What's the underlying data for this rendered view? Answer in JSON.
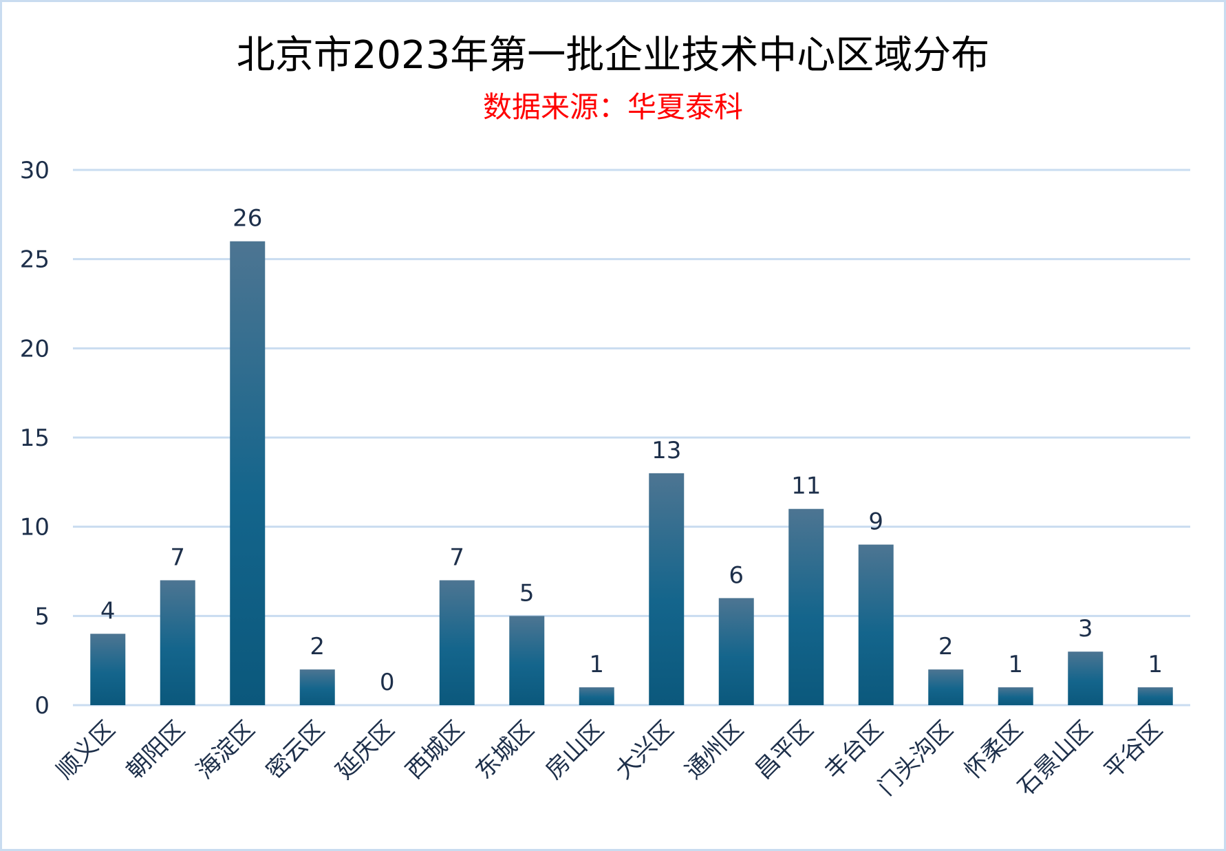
{
  "chart_data": {
    "type": "bar",
    "title": "北京市2023年第一批企业技术中心区域分布",
    "subtitle": "数据来源：华夏泰科",
    "xlabel": "",
    "ylabel": "",
    "categories": [
      "顺义区",
      "朝阳区",
      "海淀区",
      "密云区",
      "延庆区",
      "西城区",
      "东城区",
      "房山区",
      "大兴区",
      "通州区",
      "昌平区",
      "丰台区",
      "门头沟区",
      "怀柔区",
      "石景山区",
      "平谷区"
    ],
    "values": [
      4,
      7,
      26,
      2,
      0,
      7,
      5,
      1,
      13,
      6,
      11,
      9,
      2,
      1,
      3,
      1
    ],
    "ylim": [
      0,
      30
    ],
    "yticks": [
      0,
      5,
      10,
      15,
      20,
      25,
      30
    ],
    "grid": true,
    "legend": "none",
    "colors": {
      "bar_top": "#4d7592",
      "bar_bottom": "#0b587c",
      "grid": "#c9dcf0",
      "text": "#1d2f4a",
      "subtitle": "#ff0000"
    }
  }
}
